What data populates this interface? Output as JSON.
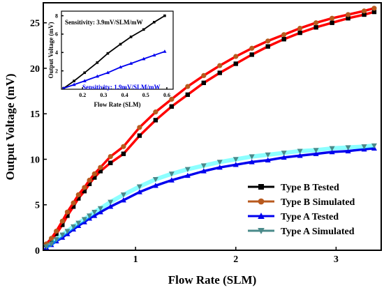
{
  "chart_data": [
    {
      "type": "line",
      "xlabel": "Flow Rate (SLM)",
      "ylabel": "Output Voltage (mV)",
      "xlim": [
        0.08,
        3.45
      ],
      "ylim": [
        0,
        27.2
      ],
      "xticks": [
        1,
        2,
        3
      ],
      "xtick_labels": [
        "1",
        "2",
        "3"
      ],
      "yticks": [
        0,
        5,
        10,
        15,
        20,
        25
      ],
      "ytick_labels": [
        "0",
        "5",
        "10",
        "15",
        "20",
        "25"
      ],
      "legend_position": "bottom-right",
      "series": [
        {
          "name": "Type B Tested",
          "color": "#000000",
          "line_color": "#ff0000",
          "marker": "square",
          "x": [
            0.11,
            0.16,
            0.21,
            0.27,
            0.32,
            0.38,
            0.43,
            0.49,
            0.54,
            0.59,
            0.65,
            0.75,
            0.88,
            1.04,
            1.2,
            1.36,
            1.52,
            1.68,
            1.84,
            2.0,
            2.16,
            2.32,
            2.48,
            2.64,
            2.8,
            2.96,
            3.12,
            3.28,
            3.38
          ],
          "y": [
            0.6,
            1.1,
            1.8,
            2.8,
            3.8,
            4.8,
            5.7,
            6.5,
            7.3,
            8.0,
            8.7,
            9.6,
            10.6,
            12.6,
            14.3,
            15.8,
            17.1,
            18.4,
            19.5,
            20.5,
            21.5,
            22.4,
            23.2,
            23.9,
            24.5,
            25.0,
            25.5,
            25.9,
            26.2
          ]
        },
        {
          "name": "Type B Simulated",
          "color": "#b85a1e",
          "line_color": "#ff0000",
          "marker": "circle",
          "x": [
            0.11,
            0.16,
            0.21,
            0.27,
            0.32,
            0.38,
            0.43,
            0.49,
            0.54,
            0.59,
            0.65,
            0.75,
            0.88,
            1.04,
            1.2,
            1.36,
            1.52,
            1.68,
            1.84,
            2.0,
            2.16,
            2.32,
            2.48,
            2.64,
            2.8,
            2.96,
            3.12,
            3.28,
            3.38
          ],
          "y": [
            0.7,
            1.3,
            2.1,
            3.2,
            4.2,
            5.2,
            6.1,
            6.9,
            7.7,
            8.4,
            9.1,
            10.3,
            11.4,
            13.5,
            15.2,
            16.6,
            18.0,
            19.2,
            20.3,
            21.3,
            22.2,
            23.0,
            23.7,
            24.4,
            25.0,
            25.5,
            25.9,
            26.3,
            26.6
          ]
        },
        {
          "name": "Type A Tested",
          "color": "#0000ee",
          "line_color": "#0000ee",
          "marker": "triangle-up",
          "x": [
            0.11,
            0.16,
            0.21,
            0.27,
            0.32,
            0.38,
            0.43,
            0.49,
            0.54,
            0.59,
            0.65,
            0.75,
            0.88,
            1.04,
            1.2,
            1.36,
            1.52,
            1.68,
            1.84,
            2.0,
            2.16,
            2.32,
            2.48,
            2.64,
            2.8,
            2.96,
            3.12,
            3.28,
            3.38
          ],
          "y": [
            0.3,
            0.6,
            1.0,
            1.4,
            1.8,
            2.3,
            2.7,
            3.1,
            3.5,
            3.8,
            4.2,
            4.8,
            5.5,
            6.4,
            7.1,
            7.7,
            8.2,
            8.7,
            9.1,
            9.4,
            9.7,
            9.9,
            10.2,
            10.4,
            10.6,
            10.8,
            10.9,
            11.1,
            11.2
          ]
        },
        {
          "name": "Type A Simulated",
          "color": "#4a8a8a",
          "line_color": "#00ffff",
          "marker": "triangle-down",
          "x": [
            0.11,
            0.16,
            0.21,
            0.27,
            0.32,
            0.38,
            0.43,
            0.49,
            0.54,
            0.59,
            0.65,
            0.75,
            0.88,
            1.04,
            1.2,
            1.36,
            1.52,
            1.68,
            1.84,
            2.0,
            2.16,
            2.32,
            2.48,
            2.64,
            2.8,
            2.96,
            3.12,
            3.28,
            3.38
          ],
          "y": [
            0.4,
            0.7,
            1.2,
            1.7,
            2.1,
            2.6,
            3.0,
            3.4,
            3.8,
            4.2,
            4.6,
            5.3,
            6.1,
            7.0,
            7.8,
            8.4,
            8.9,
            9.3,
            9.7,
            10.0,
            10.3,
            10.5,
            10.7,
            10.9,
            11.0,
            11.2,
            11.3,
            11.4,
            11.5
          ]
        }
      ]
    },
    {
      "type": "line",
      "xlabel": "Flow Rate (SLM)",
      "ylabel": "Output Voltage (mV)",
      "xlim": [
        0.1,
        0.63
      ],
      "ylim": [
        0,
        8.5
      ],
      "xticks": [
        0.2,
        0.3,
        0.4,
        0.5,
        0.6
      ],
      "xtick_labels": [
        "0.2",
        "0.3",
        "0.4",
        "0.5",
        "0.6"
      ],
      "yticks": [
        2,
        4,
        6,
        8
      ],
      "ytick_labels": [
        "2",
        "4",
        "6",
        "8"
      ],
      "annotations": [
        "Sensitivity: 3.9mV/SLM/mW",
        "Sensitivity: 1.9mV/SLM/mW"
      ],
      "series": [
        {
          "color": "#000000",
          "marker": "square",
          "x": [
            0.11,
            0.16,
            0.21,
            0.27,
            0.32,
            0.38,
            0.43,
            0.49,
            0.54,
            0.59
          ],
          "y": [
            0.1,
            0.9,
            1.8,
            2.9,
            3.9,
            4.9,
            5.7,
            6.5,
            7.3,
            8.0
          ]
        },
        {
          "color": "#0000ee",
          "marker": "triangle-up",
          "x": [
            0.11,
            0.16,
            0.21,
            0.27,
            0.32,
            0.38,
            0.43,
            0.49,
            0.54,
            0.59
          ],
          "y": [
            0.1,
            0.5,
            0.9,
            1.4,
            1.8,
            2.4,
            2.8,
            3.3,
            3.7,
            4.1
          ]
        }
      ]
    }
  ]
}
